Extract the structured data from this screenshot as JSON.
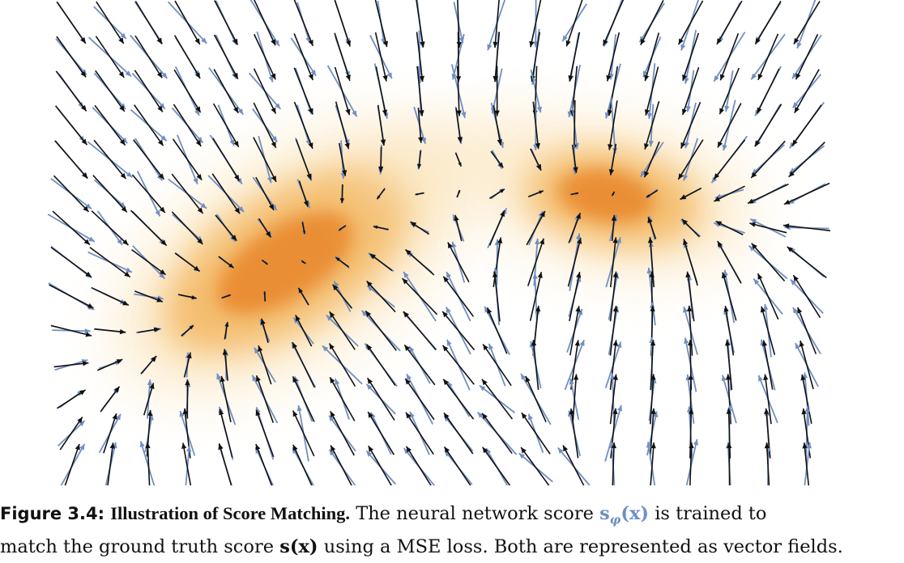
{
  "figure": {
    "colors": {
      "density_core": "#e8862a",
      "density_mid": "#f3b660",
      "density_fade": "#fbe7c2",
      "arrow_ground_truth": "#111111",
      "arrow_network": "#6f8fc4",
      "background": "#ffffff"
    }
  },
  "caption": {
    "label": "Figure 3.4:",
    "title": "Illustration of Score Matching.",
    "line1_text": "The neural network score",
    "network_score_symbol": "s",
    "network_score_subscript": "φ",
    "network_score_arg": "(x)",
    "line1_end": "is trained to",
    "line2_start": "match the ground truth score",
    "truth_score_symbol": "s",
    "truth_score_arg": "(x)",
    "line2_end": "using a MSE loss. Both are represented as vector fields."
  }
}
